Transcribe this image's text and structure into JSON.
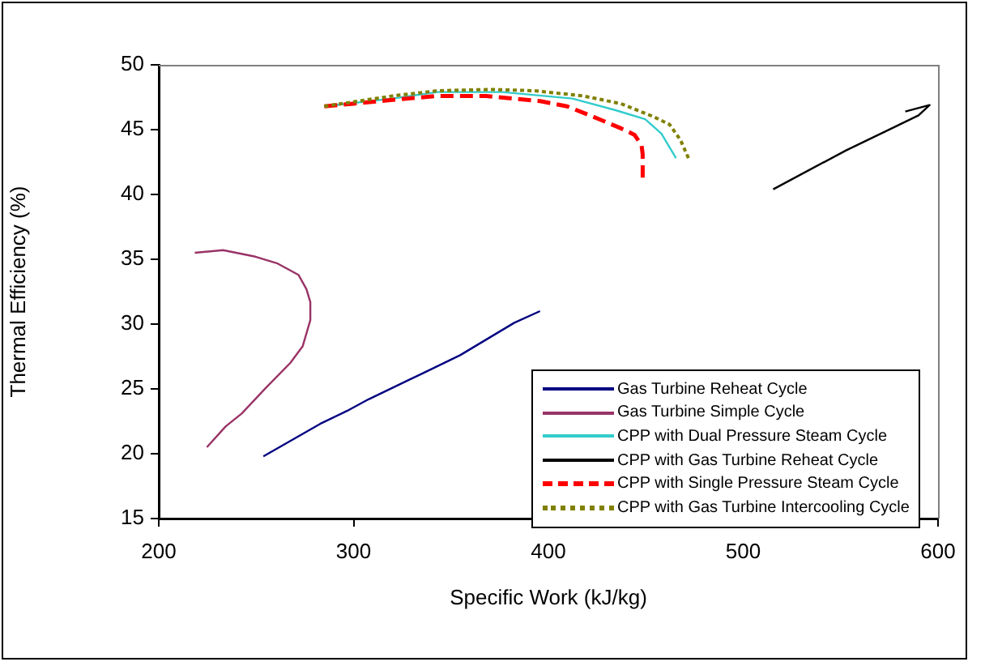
{
  "chart_data": {
    "type": "line",
    "xlabel": "Specific Work (kJ/kg)",
    "ylabel": "Thermal Efficiency (%)",
    "xlim": [
      200,
      600
    ],
    "xticks": [
      200,
      300,
      400,
      500,
      600
    ],
    "ylim": [
      15,
      50
    ],
    "yticks": [
      15,
      20,
      25,
      30,
      35,
      40,
      45,
      50
    ],
    "grid": false,
    "legend": "bottom right",
    "marker": "none",
    "series": [
      {
        "name": "Gas Turbine Reheat Cycle",
        "color": "#000080",
        "line_style": "solid",
        "x": [
          253.7,
          282.8,
          296.6,
          307.7,
          335.4,
          354.7,
          382.5,
          395.7
        ],
        "values": [
          19.8,
          22.3,
          23.3,
          24.2,
          26.2,
          27.6,
          30.1,
          31.0
        ]
      },
      {
        "name": "Gas Turbine Simple Cycle",
        "color": "#993366",
        "line_style": "solid",
        "x": [
          218.5,
          233,
          249.6,
          260.6,
          271.7,
          275.8,
          277.8,
          277.8,
          273.9,
          267.5,
          255.1,
          242.6,
          234.3,
          224.7
        ],
        "values": [
          35.5,
          35.7,
          35.2,
          34.7,
          33.8,
          32.7,
          31.7,
          30.3,
          28.3,
          27.0,
          25.1,
          23.1,
          22.1,
          20.5
        ]
      },
      {
        "name": "CPP with Dual Pressure Steam Cycle",
        "color": "#33cccc",
        "line_style": "solid",
        "x": [
          285,
          320,
          343,
          376.3,
          412.3,
          434.5,
          449.7,
          458,
          465.5
        ],
        "values": [
          46.8,
          47.4,
          47.9,
          47.9,
          47.4,
          46.5,
          45.8,
          44.7,
          42.8
        ]
      },
      {
        "name": "CPP with Gas Turbine Reheat Cycle",
        "color": "#000000",
        "line_style": "solid",
        "x": [
          515.4,
          552.8,
          573.5,
          590,
          595.7,
          583.2
        ],
        "values": [
          40.4,
          43.4,
          44.9,
          46.1,
          46.9,
          46.4
        ]
      },
      {
        "name": "CPP with Single Pressure Steam Cycle",
        "color": "#ff0000",
        "line_style": "dashed",
        "x": [
          285,
          300,
          320,
          343,
          368,
          381.9,
          395.7,
          409.6,
          426.2,
          437.3,
          444.2,
          447.8,
          448.4,
          448.4
        ],
        "values": [
          46.8,
          47.0,
          47.3,
          47.6,
          47.6,
          47.4,
          47.2,
          46.8,
          45.8,
          45.1,
          44.6,
          43.8,
          43.1,
          41.3
        ]
      },
      {
        "name": "CPP with Gas Turbine Intercooling Cycle",
        "color": "#808000",
        "line_style": "dotted",
        "x": [
          285,
          320,
          343,
          370.7,
          392.9,
          417.9,
          437.3,
          453.9,
          462.2,
          467.8,
          472.5
        ],
        "values": [
          46.8,
          47.6,
          48.0,
          48.1,
          48.0,
          47.6,
          47.0,
          46.0,
          45.4,
          44.2,
          42.6
        ]
      }
    ]
  }
}
